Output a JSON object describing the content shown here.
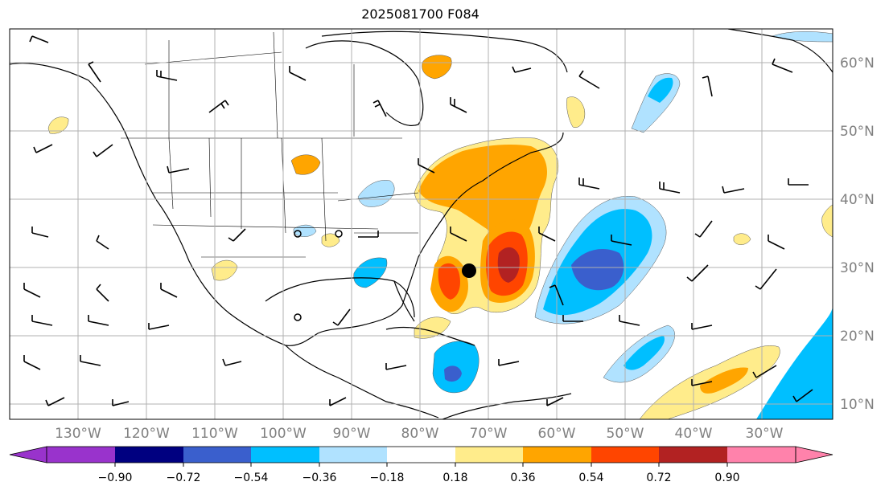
{
  "title": "2025081700 F084",
  "longitude_labels": [
    "130°W",
    "120°W",
    "110°W",
    "100°W",
    "90°W",
    "80°W",
    "70°W",
    "60°W",
    "50°W",
    "40°W",
    "30°W"
  ],
  "latitude_labels": [
    "60°N",
    "50°N",
    "40°N",
    "30°N",
    "20°N",
    "10°N"
  ],
  "colorbar": {
    "ticks": [
      "−0.90",
      "−0.72",
      "−0.54",
      "−0.36",
      "−0.18",
      "0.18",
      "0.36",
      "0.54",
      "0.72",
      "0.90"
    ],
    "colors": [
      "#9933cc",
      "#000080",
      "#3a5fcd",
      "#00bfff",
      "#b0e2ff",
      "#ffffff",
      "#ffec8b",
      "#ffa500",
      "#ff4500",
      "#b22222",
      "#ff82ab"
    ]
  },
  "colors": {
    "grid": "#b0b0b0",
    "coast": "#000000",
    "neg_light": "#b0e2ff",
    "neg_med": "#00bfff",
    "neg_dark": "#3a5fcd",
    "pos_light": "#ffec8b",
    "pos_med": "#ffa500",
    "pos_strong": "#ff4500",
    "pos_dark": "#b22222"
  }
}
